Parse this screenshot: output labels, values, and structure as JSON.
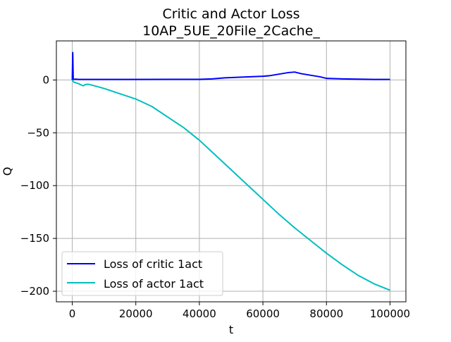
{
  "chart_data": {
    "type": "line",
    "title": "Critic and Actor Loss",
    "subtitle": "10AP_5UE_20File_2Cache_",
    "xlabel": "t",
    "ylabel": "Q",
    "xlim": [
      -5000,
      105000
    ],
    "ylim": [
      -210,
      37
    ],
    "xticks": [
      0,
      20000,
      40000,
      60000,
      80000,
      100000
    ],
    "xtick_labels": [
      "0",
      "20000",
      "40000",
      "60000",
      "80000",
      "100000"
    ],
    "yticks": [
      0,
      -50,
      -100,
      -150,
      -200
    ],
    "ytick_labels": [
      "0",
      "−50",
      "−100",
      "−150",
      "−200"
    ],
    "grid": true,
    "legend_position": "lower-left",
    "series": [
      {
        "name": "Loss of critic 1act",
        "color": "#0000ff",
        "x": [
          0,
          150,
          300,
          500,
          1000,
          2000,
          5000,
          10000,
          20000,
          30000,
          40000,
          44000,
          48000,
          52000,
          56000,
          60000,
          62000,
          64000,
          66000,
          68000,
          70000,
          72000,
          74000,
          76000,
          78000,
          80000,
          85000,
          90000,
          95000,
          100000
        ],
        "y": [
          0,
          26,
          1,
          0.5,
          0.8,
          0.5,
          0.5,
          0.5,
          0.5,
          0.6,
          0.6,
          1.0,
          2.0,
          2.5,
          3.0,
          3.5,
          4.0,
          5.0,
          6.0,
          7.0,
          7.5,
          6.0,
          5.0,
          4.0,
          3.0,
          1.5,
          1.0,
          0.8,
          0.5,
          0.5
        ]
      },
      {
        "name": "Loss of actor 1act",
        "color": "#00bfbf",
        "x": [
          0,
          200,
          500,
          1000,
          2000,
          3000,
          3500,
          4000,
          5000,
          7000,
          10000,
          15000,
          20000,
          25000,
          30000,
          35000,
          40000,
          45000,
          50000,
          55000,
          60000,
          65000,
          70000,
          75000,
          80000,
          85000,
          90000,
          95000,
          100000
        ],
        "y": [
          0,
          -1,
          -2,
          -2.5,
          -3.5,
          -5,
          -5.5,
          -4.5,
          -4,
          -5.5,
          -8,
          -13,
          -18,
          -25,
          -35,
          -45,
          -57,
          -71,
          -85,
          -99,
          -113,
          -127,
          -140,
          -152,
          -164,
          -175,
          -185,
          -193,
          -199
        ]
      }
    ]
  }
}
